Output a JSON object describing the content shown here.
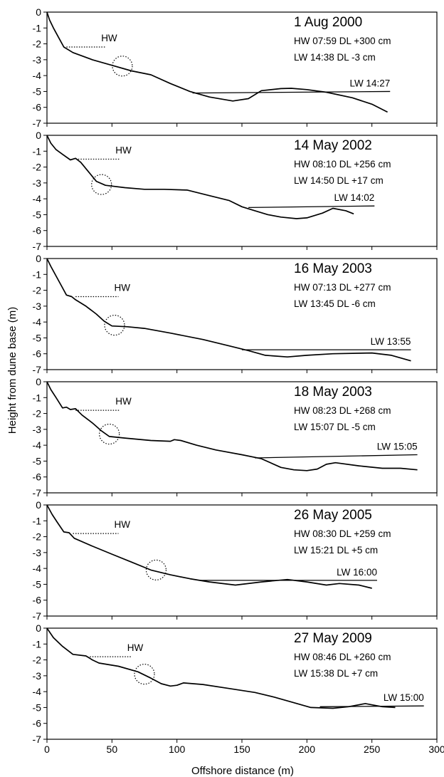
{
  "chart_data": {
    "type": "line",
    "xlabel": "Offshore distance (m)",
    "ylabel": "Height from dune base (m)",
    "xlim": [
      0,
      300
    ],
    "ylim": [
      -7,
      0
    ],
    "x_ticks": [
      "0",
      "50",
      "100",
      "150",
      "200",
      "250",
      "300"
    ],
    "y_ticks": [
      "0",
      "-1",
      "-2",
      "-3",
      "-4",
      "-5",
      "-6",
      "-7"
    ],
    "panels": [
      {
        "date": "1 Aug 2000",
        "hw_line": "HW   07:59   DL +300 cm",
        "lw_line": "LW   14:38   DL -3 cm",
        "hw_label": "HW",
        "lw_label": "LW  14:27",
        "profile": [
          [
            0,
            0
          ],
          [
            2,
            -0.5
          ],
          [
            5,
            -1
          ],
          [
            9,
            -1.6
          ],
          [
            13,
            -2.2
          ],
          [
            20,
            -2.55
          ],
          [
            35,
            -3.0
          ],
          [
            50,
            -3.35
          ],
          [
            65,
            -3.7
          ],
          [
            80,
            -3.95
          ],
          [
            95,
            -4.5
          ],
          [
            110,
            -5.0
          ],
          [
            125,
            -5.35
          ],
          [
            143,
            -5.6
          ],
          [
            155,
            -5.45
          ],
          [
            165,
            -4.95
          ],
          [
            180,
            -4.82
          ],
          [
            188,
            -4.8
          ],
          [
            200,
            -4.88
          ],
          [
            215,
            -5.05
          ],
          [
            235,
            -5.4
          ],
          [
            250,
            -5.8
          ],
          [
            262,
            -6.3
          ]
        ],
        "hw_level": {
          "x": [
            15,
            45
          ],
          "y": -2.2
        },
        "lw_level": {
          "x": [
            112,
            264
          ],
          "y1": -5.1,
          "y2": -5.0
        },
        "circle": {
          "x": 58,
          "y": -3.4
        }
      },
      {
        "date": "14 May 2002",
        "hw_line": "HW   08:10   DL +256 cm",
        "lw_line": "LW   14:50   DL +17 cm",
        "hw_label": "HW",
        "lw_label": "LW  14:02",
        "profile": [
          [
            0,
            0
          ],
          [
            3,
            -0.5
          ],
          [
            7,
            -0.9
          ],
          [
            12,
            -1.2
          ],
          [
            18,
            -1.55
          ],
          [
            22,
            -1.45
          ],
          [
            26,
            -1.7
          ],
          [
            32,
            -2.3
          ],
          [
            38,
            -2.9
          ],
          [
            45,
            -3.15
          ],
          [
            60,
            -3.3
          ],
          [
            75,
            -3.4
          ],
          [
            90,
            -3.4
          ],
          [
            108,
            -3.45
          ],
          [
            125,
            -3.8
          ],
          [
            140,
            -4.1
          ],
          [
            150,
            -4.5
          ],
          [
            160,
            -4.75
          ],
          [
            170,
            -5.0
          ],
          [
            180,
            -5.15
          ],
          [
            192,
            -5.25
          ],
          [
            200,
            -5.2
          ],
          [
            212,
            -4.9
          ],
          [
            220,
            -4.6
          ],
          [
            230,
            -4.75
          ],
          [
            236,
            -4.95
          ]
        ],
        "hw_level": {
          "x": [
            24,
            56
          ],
          "y": -1.5
        },
        "lw_level": {
          "x": [
            155,
            252
          ],
          "y1": -4.55,
          "y2": -4.45
        },
        "circle": {
          "x": 42,
          "y": -3.1
        }
      },
      {
        "date": "16 May 2003",
        "hw_line": "HW   07:13   DL +277 cm",
        "lw_line": "LW   13:45   DL -6 cm",
        "hw_label": "HW",
        "lw_label": "LW  13:55",
        "profile": [
          [
            0,
            0
          ],
          [
            3,
            -0.5
          ],
          [
            7,
            -1.1
          ],
          [
            11,
            -1.7
          ],
          [
            15,
            -2.3
          ],
          [
            19,
            -2.4
          ],
          [
            22,
            -2.6
          ],
          [
            30,
            -3.0
          ],
          [
            38,
            -3.5
          ],
          [
            44,
            -3.95
          ],
          [
            50,
            -4.25
          ],
          [
            62,
            -4.3
          ],
          [
            75,
            -4.4
          ],
          [
            95,
            -4.7
          ],
          [
            120,
            -5.1
          ],
          [
            140,
            -5.5
          ],
          [
            155,
            -5.8
          ],
          [
            168,
            -6.1
          ],
          [
            185,
            -6.2
          ],
          [
            200,
            -6.1
          ],
          [
            220,
            -6.0
          ],
          [
            250,
            -5.95
          ],
          [
            265,
            -6.1
          ],
          [
            280,
            -6.45
          ]
        ],
        "hw_level": {
          "x": [
            22,
            55
          ],
          "y": -2.4
        },
        "lw_level": {
          "x": [
            150,
            280
          ],
          "y1": -5.75,
          "y2": -5.75
        },
        "circle": {
          "x": 52,
          "y": -4.2
        }
      },
      {
        "date": "18 May 2003",
        "hw_line": "HW   08:23   DL +268 cm",
        "lw_line": "LW   15:07   DL -5 cm",
        "hw_label": "HW",
        "lw_label": "LW  15:05",
        "profile": [
          [
            0,
            0
          ],
          [
            3,
            -0.5
          ],
          [
            7,
            -1.0
          ],
          [
            12,
            -1.65
          ],
          [
            15,
            -1.6
          ],
          [
            18,
            -1.75
          ],
          [
            22,
            -1.7
          ],
          [
            27,
            -2.1
          ],
          [
            35,
            -2.6
          ],
          [
            42,
            -3.1
          ],
          [
            48,
            -3.45
          ],
          [
            60,
            -3.55
          ],
          [
            80,
            -3.7
          ],
          [
            95,
            -3.75
          ],
          [
            98,
            -3.65
          ],
          [
            103,
            -3.7
          ],
          [
            115,
            -4.0
          ],
          [
            130,
            -4.3
          ],
          [
            150,
            -4.6
          ],
          [
            165,
            -4.85
          ],
          [
            180,
            -5.4
          ],
          [
            190,
            -5.55
          ],
          [
            200,
            -5.6
          ],
          [
            208,
            -5.5
          ],
          [
            215,
            -5.2
          ],
          [
            222,
            -5.1
          ],
          [
            240,
            -5.3
          ],
          [
            258,
            -5.45
          ],
          [
            272,
            -5.45
          ],
          [
            285,
            -5.55
          ]
        ],
        "hw_level": {
          "x": [
            22,
            56
          ],
          "y": -1.8
        },
        "lw_level": {
          "x": [
            160,
            285
          ],
          "y1": -4.8,
          "y2": -4.6
        },
        "circle": {
          "x": 48,
          "y": -3.3
        }
      },
      {
        "date": "26 May 2005",
        "hw_line": "HW   08:30   DL +259 cm",
        "lw_line": "LW   15:21   DL +5 cm",
        "hw_label": "HW",
        "lw_label": "LW  16:00",
        "profile": [
          [
            0,
            0
          ],
          [
            4,
            -0.6
          ],
          [
            8,
            -1.1
          ],
          [
            13,
            -1.7
          ],
          [
            17,
            -1.75
          ],
          [
            21,
            -2.1
          ],
          [
            35,
            -2.6
          ],
          [
            50,
            -3.1
          ],
          [
            65,
            -3.6
          ],
          [
            80,
            -4.1
          ],
          [
            95,
            -4.4
          ],
          [
            110,
            -4.65
          ],
          [
            125,
            -4.85
          ],
          [
            145,
            -5.05
          ],
          [
            165,
            -4.85
          ],
          [
            185,
            -4.7
          ],
          [
            200,
            -4.85
          ],
          [
            215,
            -5.05
          ],
          [
            225,
            -4.95
          ],
          [
            240,
            -5.05
          ],
          [
            250,
            -5.25
          ]
        ],
        "hw_level": {
          "x": [
            20,
            55
          ],
          "y": -1.8
        },
        "lw_level": {
          "x": [
            117,
            254
          ],
          "y1": -4.75,
          "y2": -4.75
        },
        "circle": {
          "x": 84,
          "y": -4.1
        }
      },
      {
        "date": "27 May 2009",
        "hw_line": "HW   08:46   DL +260 cm",
        "lw_line": "LW   15:38   DL +7 cm",
        "hw_label": "HW",
        "lw_label": "LW  15:00",
        "profile": [
          [
            0,
            0
          ],
          [
            5,
            -0.6
          ],
          [
            12,
            -1.15
          ],
          [
            20,
            -1.65
          ],
          [
            30,
            -1.75
          ],
          [
            35,
            -2.0
          ],
          [
            40,
            -2.2
          ],
          [
            55,
            -2.4
          ],
          [
            70,
            -2.75
          ],
          [
            80,
            -3.15
          ],
          [
            88,
            -3.5
          ],
          [
            95,
            -3.65
          ],
          [
            100,
            -3.6
          ],
          [
            105,
            -3.45
          ],
          [
            120,
            -3.55
          ],
          [
            140,
            -3.8
          ],
          [
            160,
            -4.05
          ],
          [
            175,
            -4.35
          ],
          [
            190,
            -4.7
          ],
          [
            203,
            -5.0
          ],
          [
            220,
            -5.05
          ],
          [
            232,
            -4.95
          ],
          [
            245,
            -4.75
          ],
          [
            258,
            -4.95
          ],
          [
            268,
            -5.0
          ]
        ],
        "hw_level": {
          "x": [
            33,
            65
          ],
          "y": -1.8
        },
        "lw_level": {
          "x": [
            210,
            290
          ],
          "y1": -4.95,
          "y2": -4.9
        },
        "circle": {
          "x": 75,
          "y": -2.9
        }
      }
    ]
  }
}
